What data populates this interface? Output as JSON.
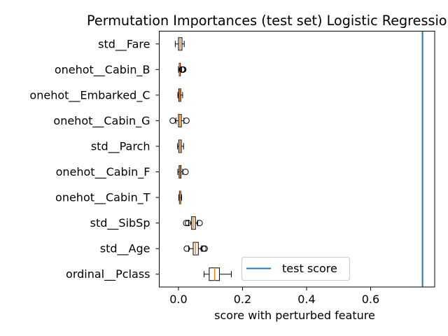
{
  "chart_data": {
    "type": "boxplot",
    "title": "Permutation Importances (test set) Logistic Regression",
    "xlabel": "score with perturbed feature",
    "ylabel": "",
    "xlim": [
      -0.06,
      0.8
    ],
    "x_ticks": [
      0.0,
      0.2,
      0.4,
      0.6
    ],
    "x_tick_labels": [
      "0.0",
      "0.2",
      "0.4",
      "0.6"
    ],
    "grid": false,
    "legend": {
      "placement": "lower-center",
      "entries": [
        "test score"
      ]
    },
    "reference_line": {
      "label": "test score",
      "x": 0.762
    },
    "colors": {
      "box": "#000000",
      "median": "#ff7f0e",
      "reference": "#1f77b4"
    },
    "categories": [
      "std__Fare",
      "onehot__Cabin_B",
      "onehot__Embarked_C",
      "onehot__Cabin_G",
      "std__Parch",
      "onehot__Cabin_F",
      "onehot__Cabin_T",
      "std__SibSp",
      "std__Age",
      "ordinal__Pclass"
    ],
    "boxes": [
      {
        "feature": "std__Fare",
        "whisker_low": -0.01,
        "q1": 0.0,
        "median": 0.005,
        "q3": 0.011,
        "whisker_high": 0.018,
        "outliers": []
      },
      {
        "feature": "onehot__Cabin_B",
        "whisker_low": 0.0,
        "q1": 0.002,
        "median": 0.003,
        "q3": 0.006,
        "whisker_high": 0.01,
        "outliers": [
          0.011,
          0.013,
          0.015
        ]
      },
      {
        "feature": "onehot__Embarked_C",
        "whisker_low": -0.002,
        "q1": 0.001,
        "median": 0.004,
        "q3": 0.007,
        "whisker_high": 0.013,
        "outliers": []
      },
      {
        "feature": "onehot__Cabin_G",
        "whisker_low": -0.008,
        "q1": 0.0,
        "median": 0.004,
        "q3": 0.009,
        "whisker_high": 0.017,
        "outliers": [
          -0.018,
          0.025
        ]
      },
      {
        "feature": "std__Parch",
        "whisker_low": -0.003,
        "q1": 0.001,
        "median": 0.005,
        "q3": 0.009,
        "whisker_high": 0.016,
        "outliers": []
      },
      {
        "feature": "onehot__Cabin_F",
        "whisker_low": -0.002,
        "q1": 0.002,
        "median": 0.005,
        "q3": 0.008,
        "whisker_high": 0.013,
        "outliers": [
          0.022
        ]
      },
      {
        "feature": "onehot__Cabin_T",
        "whisker_low": 0.001,
        "q1": 0.003,
        "median": 0.005,
        "q3": 0.007,
        "whisker_high": 0.01,
        "outliers": []
      },
      {
        "feature": "std__SibSp",
        "whisker_low": 0.032,
        "q1": 0.041,
        "median": 0.046,
        "q3": 0.053,
        "whisker_high": 0.06,
        "outliers": [
          0.024,
          0.03,
          0.066
        ]
      },
      {
        "feature": "std__Age",
        "whisker_low": 0.032,
        "q1": 0.046,
        "median": 0.053,
        "q3": 0.062,
        "whisker_high": 0.072,
        "outliers": [
          0.026,
          0.078,
          0.082
        ]
      },
      {
        "feature": "ordinal__Pclass",
        "whisker_low": 0.08,
        "q1": 0.096,
        "median": 0.113,
        "q3": 0.128,
        "whisker_high": 0.165,
        "outliers": []
      }
    ]
  }
}
